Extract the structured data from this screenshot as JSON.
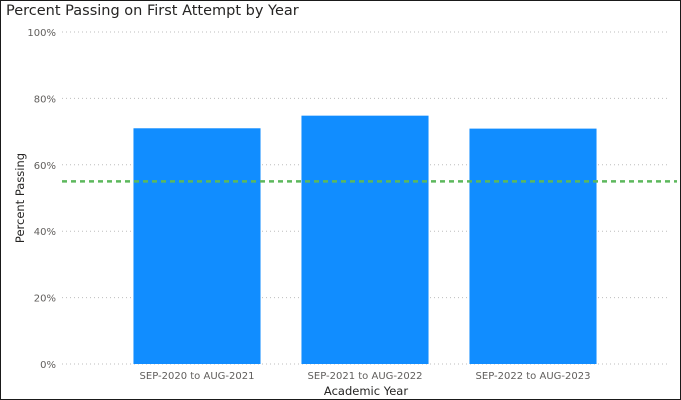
{
  "chart_data": {
    "type": "bar",
    "title": "Percent Passing on First Attempt by Year",
    "xlabel": "Academic Year",
    "ylabel": "Percent Passing",
    "categories": [
      "SEP-2020 to AUG-2021",
      "SEP-2021 to AUG-2022",
      "SEP-2022 to AUG-2023"
    ],
    "values": [
      71,
      74.8,
      70.9
    ],
    "ylim": [
      0,
      100
    ],
    "yticks": [
      "0%",
      "20%",
      "40%",
      "60%",
      "80%",
      "100%"
    ],
    "ytick_values": [
      0,
      20,
      40,
      60,
      80,
      100
    ],
    "reference_line": {
      "value": 55,
      "color": "#5cb85c",
      "style": "dashed"
    },
    "bar_color": "#118dff",
    "grid": "horizontal-dotted",
    "legend": "none"
  }
}
